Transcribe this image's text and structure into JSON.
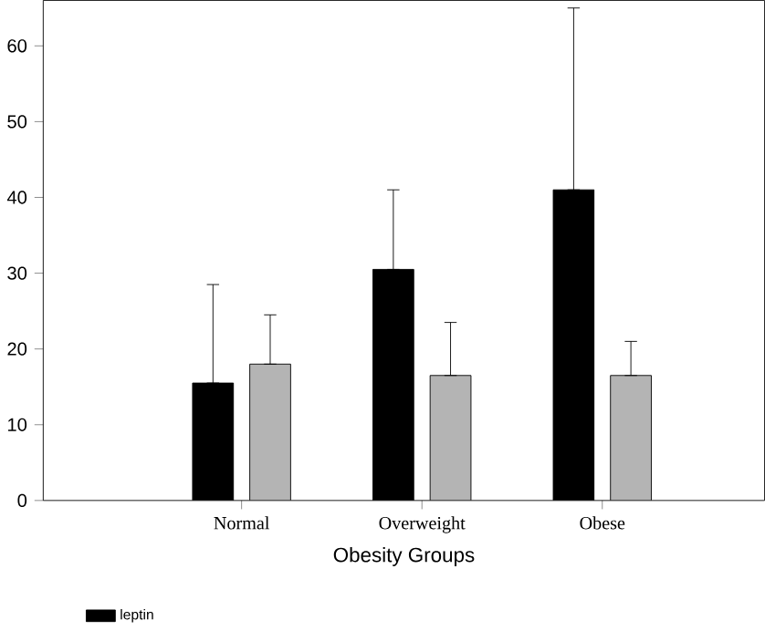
{
  "chart_data": {
    "type": "bar",
    "xlabel": "Obesity Groups",
    "categories": [
      "Normal",
      "Overweight",
      "Obese"
    ],
    "series": [
      {
        "name": "leptin",
        "color": "#000000",
        "values": [
          15.5,
          30.5,
          41
        ],
        "errors": [
          [
            15.5,
            28.5
          ],
          [
            30.5,
            41
          ],
          [
            41,
            65
          ]
        ]
      },
      {
        "color": "#b4b4b4",
        "values": [
          18,
          16.5,
          16.5
        ],
        "errors": [
          [
            18,
            24.5
          ],
          [
            16.5,
            23.5
          ],
          [
            16.5,
            21
          ]
        ]
      }
    ],
    "ylim": [
      0,
      66
    ],
    "yticks": [
      0,
      10,
      20,
      30,
      40,
      50,
      60
    ],
    "grid": false,
    "legend": "bottom left"
  }
}
